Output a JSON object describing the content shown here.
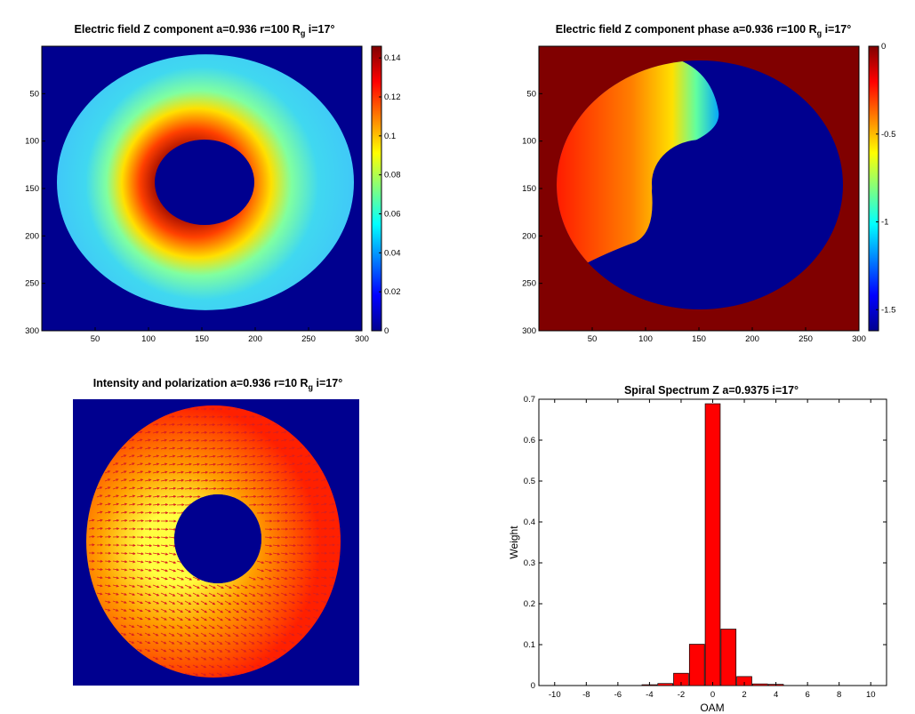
{
  "panels": {
    "field_z": {
      "title_main": "Electric field Z component a=0.936 r=100 R",
      "title_sub": "g",
      "title_tail": " i=17°",
      "xticks": [
        "50",
        "100",
        "150",
        "200",
        "250",
        "300"
      ],
      "yticks": [
        "50",
        "100",
        "150",
        "200",
        "250",
        "300"
      ],
      "colorbar_ticks": [
        "0",
        "0.02",
        "0.04",
        "0.06",
        "0.08",
        "0.1",
        "0.12",
        "0.14"
      ]
    },
    "phase_z": {
      "title_main": "Electric field Z component phase a=0.936 r=100 R",
      "title_sub": "g",
      "title_tail": " i=17°",
      "xticks": [
        "50",
        "100",
        "150",
        "200",
        "250",
        "300"
      ],
      "yticks": [
        "50",
        "100",
        "150",
        "200",
        "250",
        "300"
      ],
      "colorbar_ticks": [
        "0",
        "-0.5",
        "-1",
        "-1.5"
      ]
    },
    "intensity": {
      "title_main": "Intensity and polarization a=0.936 r=10 R",
      "title_sub": "g",
      "title_tail": " i=17°"
    },
    "spectrum": {
      "title": "Spiral Spectrum Z a=0.9375 i=17°"
    }
  },
  "colors": {
    "background_dark": "#00008f",
    "phase_outer": "#800000",
    "bar_fill": "#ff0000",
    "arrow": "#d82020"
  },
  "chart_data": {
    "type": "bar",
    "title": "Spiral Spectrum Z a=0.9375 i=17°",
    "xlabel": "OAM",
    "ylabel": "Weight",
    "xlim": [
      -11,
      11
    ],
    "ylim": [
      0,
      0.7
    ],
    "xticks": [
      "-10",
      "-8",
      "-6",
      "-4",
      "-2",
      "0",
      "2",
      "4",
      "6",
      "8",
      "10"
    ],
    "yticks": [
      "0",
      "0.1",
      "0.2",
      "0.3",
      "0.4",
      "0.5",
      "0.6",
      "0.7"
    ],
    "x": [
      -4,
      -3,
      -2,
      -1,
      0,
      1,
      2,
      3,
      4
    ],
    "values": [
      0.002,
      0.005,
      0.03,
      0.101,
      0.689,
      0.138,
      0.022,
      0.004,
      0.003
    ]
  }
}
